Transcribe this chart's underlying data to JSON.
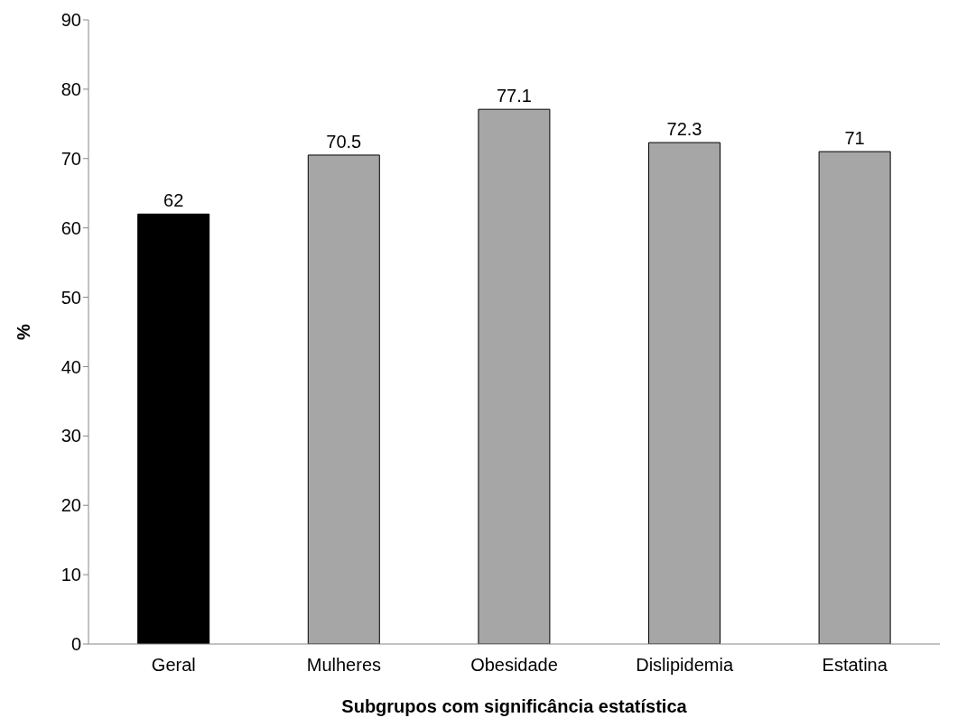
{
  "chart_data": {
    "type": "bar",
    "xlabel": "Subgrupos com significância estatística",
    "ylabel": "%",
    "categories": [
      "Geral",
      "Mulheres",
      "Obesidade",
      "Dislipidemia",
      "Estatina"
    ],
    "values": [
      62,
      70.5,
      77.1,
      72.3,
      71
    ],
    "colors": [
      "#000000",
      "#a6a6a6",
      "#a6a6a6",
      "#a6a6a6",
      "#a6a6a6"
    ],
    "ylim": [
      0,
      90
    ],
    "yticks": [
      0,
      10,
      20,
      30,
      40,
      50,
      60,
      70,
      80,
      90
    ],
    "grid": false,
    "legend": false,
    "data_labels": true
  }
}
